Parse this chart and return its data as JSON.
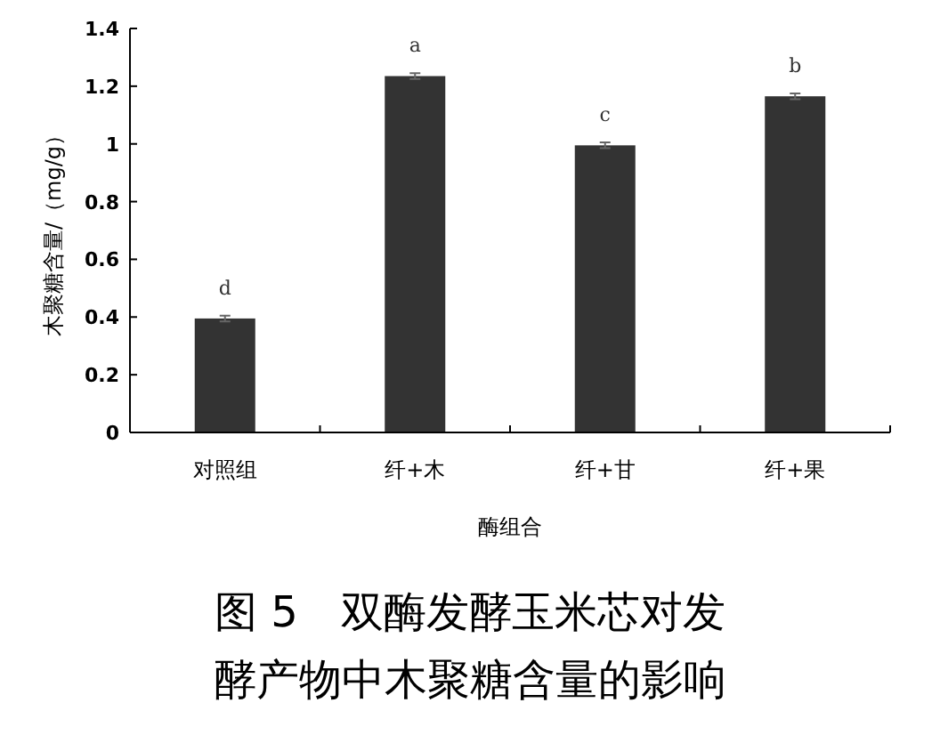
{
  "chart_data": {
    "type": "bar",
    "title": "图 5　双酶发酵玉米芯对发酵产物中木聚糖含量的影响",
    "xlabel": "酶组合",
    "ylabel": "木聚糖含量/（mg/g）",
    "categories": [
      "对照组",
      "纤+木",
      "纤+甘",
      "纤+果"
    ],
    "series": [
      {
        "color": "#333333",
        "values": [
          0.395,
          1.235,
          0.995,
          1.165
        ],
        "errors": [
          0.01,
          0.01,
          0.01,
          0.01
        ]
      }
    ],
    "annotations": [
      "d",
      "a",
      "c",
      "b"
    ],
    "ylim": [
      0,
      1.4
    ],
    "yticks": [
      0,
      0.2,
      0.4,
      0.6,
      0.8,
      1,
      1.2,
      1.4
    ],
    "grid": false
  }
}
